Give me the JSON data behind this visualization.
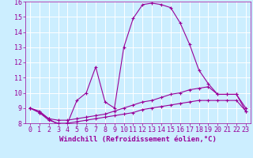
{
  "xlabel": "Windchill (Refroidissement éolien,°C)",
  "background_color": "#cceeff",
  "line_color": "#990099",
  "grid_color": "#ffffff",
  "xlim": [
    -0.5,
    23.5
  ],
  "ylim": [
    8,
    16
  ],
  "xticks": [
    0,
    1,
    2,
    3,
    4,
    5,
    6,
    7,
    8,
    9,
    10,
    11,
    12,
    13,
    14,
    15,
    16,
    17,
    18,
    19,
    20,
    21,
    22,
    23
  ],
  "yticks": [
    8,
    9,
    10,
    11,
    12,
    13,
    14,
    15,
    16
  ],
  "line1_x": [
    0,
    1,
    2,
    3,
    4,
    5,
    6,
    7,
    8,
    9,
    10,
    11,
    12,
    13,
    14,
    15,
    16,
    17,
    18,
    19,
    20,
    21,
    22,
    23
  ],
  "line1_y": [
    9.0,
    8.8,
    8.3,
    7.9,
    8.0,
    9.5,
    10.0,
    11.7,
    9.4,
    9.0,
    13.0,
    14.9,
    15.8,
    15.9,
    15.8,
    15.6,
    14.6,
    13.2,
    11.5,
    10.6,
    9.9,
    9.9,
    9.9,
    8.8
  ],
  "line2_x": [
    0,
    1,
    2,
    3,
    4,
    5,
    6,
    7,
    8,
    9,
    10,
    11,
    12,
    13,
    14,
    15,
    16,
    17,
    18,
    19,
    20,
    21,
    22,
    23
  ],
  "line2_y": [
    9.0,
    8.7,
    8.3,
    8.2,
    8.2,
    8.3,
    8.4,
    8.5,
    8.6,
    8.8,
    9.0,
    9.2,
    9.4,
    9.5,
    9.7,
    9.9,
    10.0,
    10.2,
    10.3,
    10.4,
    9.9,
    9.9,
    9.9,
    9.0
  ],
  "line3_x": [
    0,
    1,
    2,
    3,
    4,
    5,
    6,
    7,
    8,
    9,
    10,
    11,
    12,
    13,
    14,
    15,
    16,
    17,
    18,
    19,
    20,
    21,
    22,
    23
  ],
  "line3_y": [
    9.0,
    8.7,
    8.2,
    8.0,
    8.0,
    8.1,
    8.2,
    8.3,
    8.4,
    8.5,
    8.6,
    8.7,
    8.9,
    9.0,
    9.1,
    9.2,
    9.3,
    9.4,
    9.5,
    9.5,
    9.5,
    9.5,
    9.5,
    8.8
  ],
  "marker": "+",
  "markersize": 3,
  "linewidth": 0.8,
  "font_color": "#990099",
  "font_size": 6,
  "xlabel_fontsize": 6.5
}
